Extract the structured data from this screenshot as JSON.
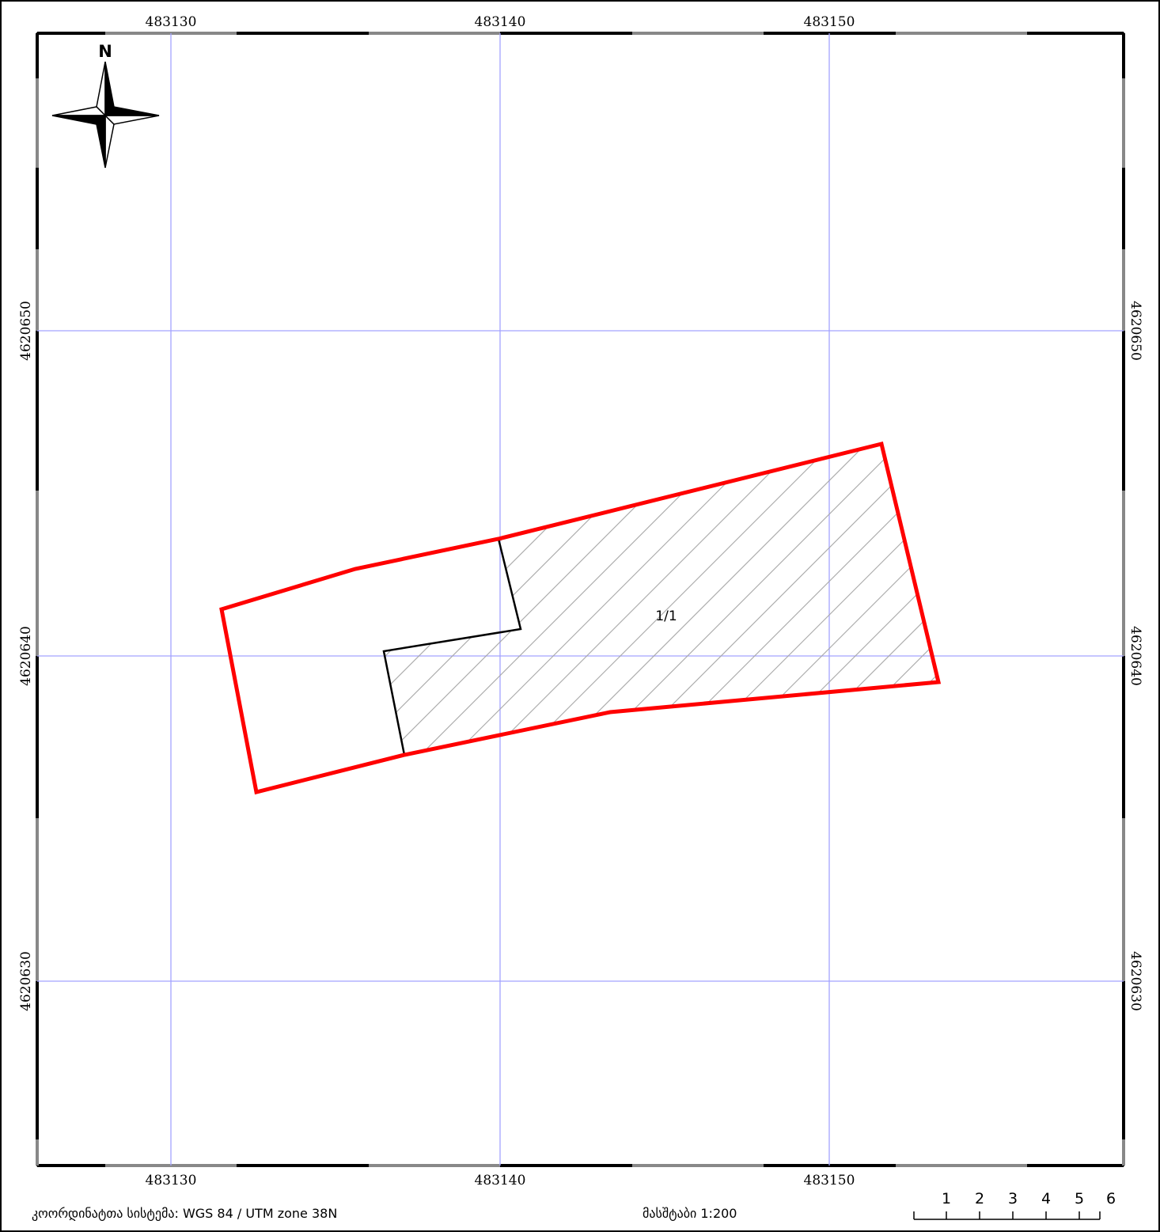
{
  "map": {
    "grid_x_labels": [
      "483130",
      "483140",
      "483150"
    ],
    "grid_y_labels": [
      "4620650",
      "4620640",
      "4620630"
    ],
    "north_label": "N",
    "parcel_label": "1/1",
    "colors": {
      "boundary": "#ff0000",
      "grid": "#a3a3ff",
      "hatch": "#a6a6a6",
      "frame": "#000000"
    }
  },
  "footer": {
    "crs_text": "კოორდინატთა სისტემა: WGS 84 / UTM zone 38N",
    "scale_text": "მასშტაბი 1:200"
  },
  "scalebar": {
    "labels": [
      "1",
      "2",
      "3",
      "4",
      "5",
      "6"
    ]
  }
}
